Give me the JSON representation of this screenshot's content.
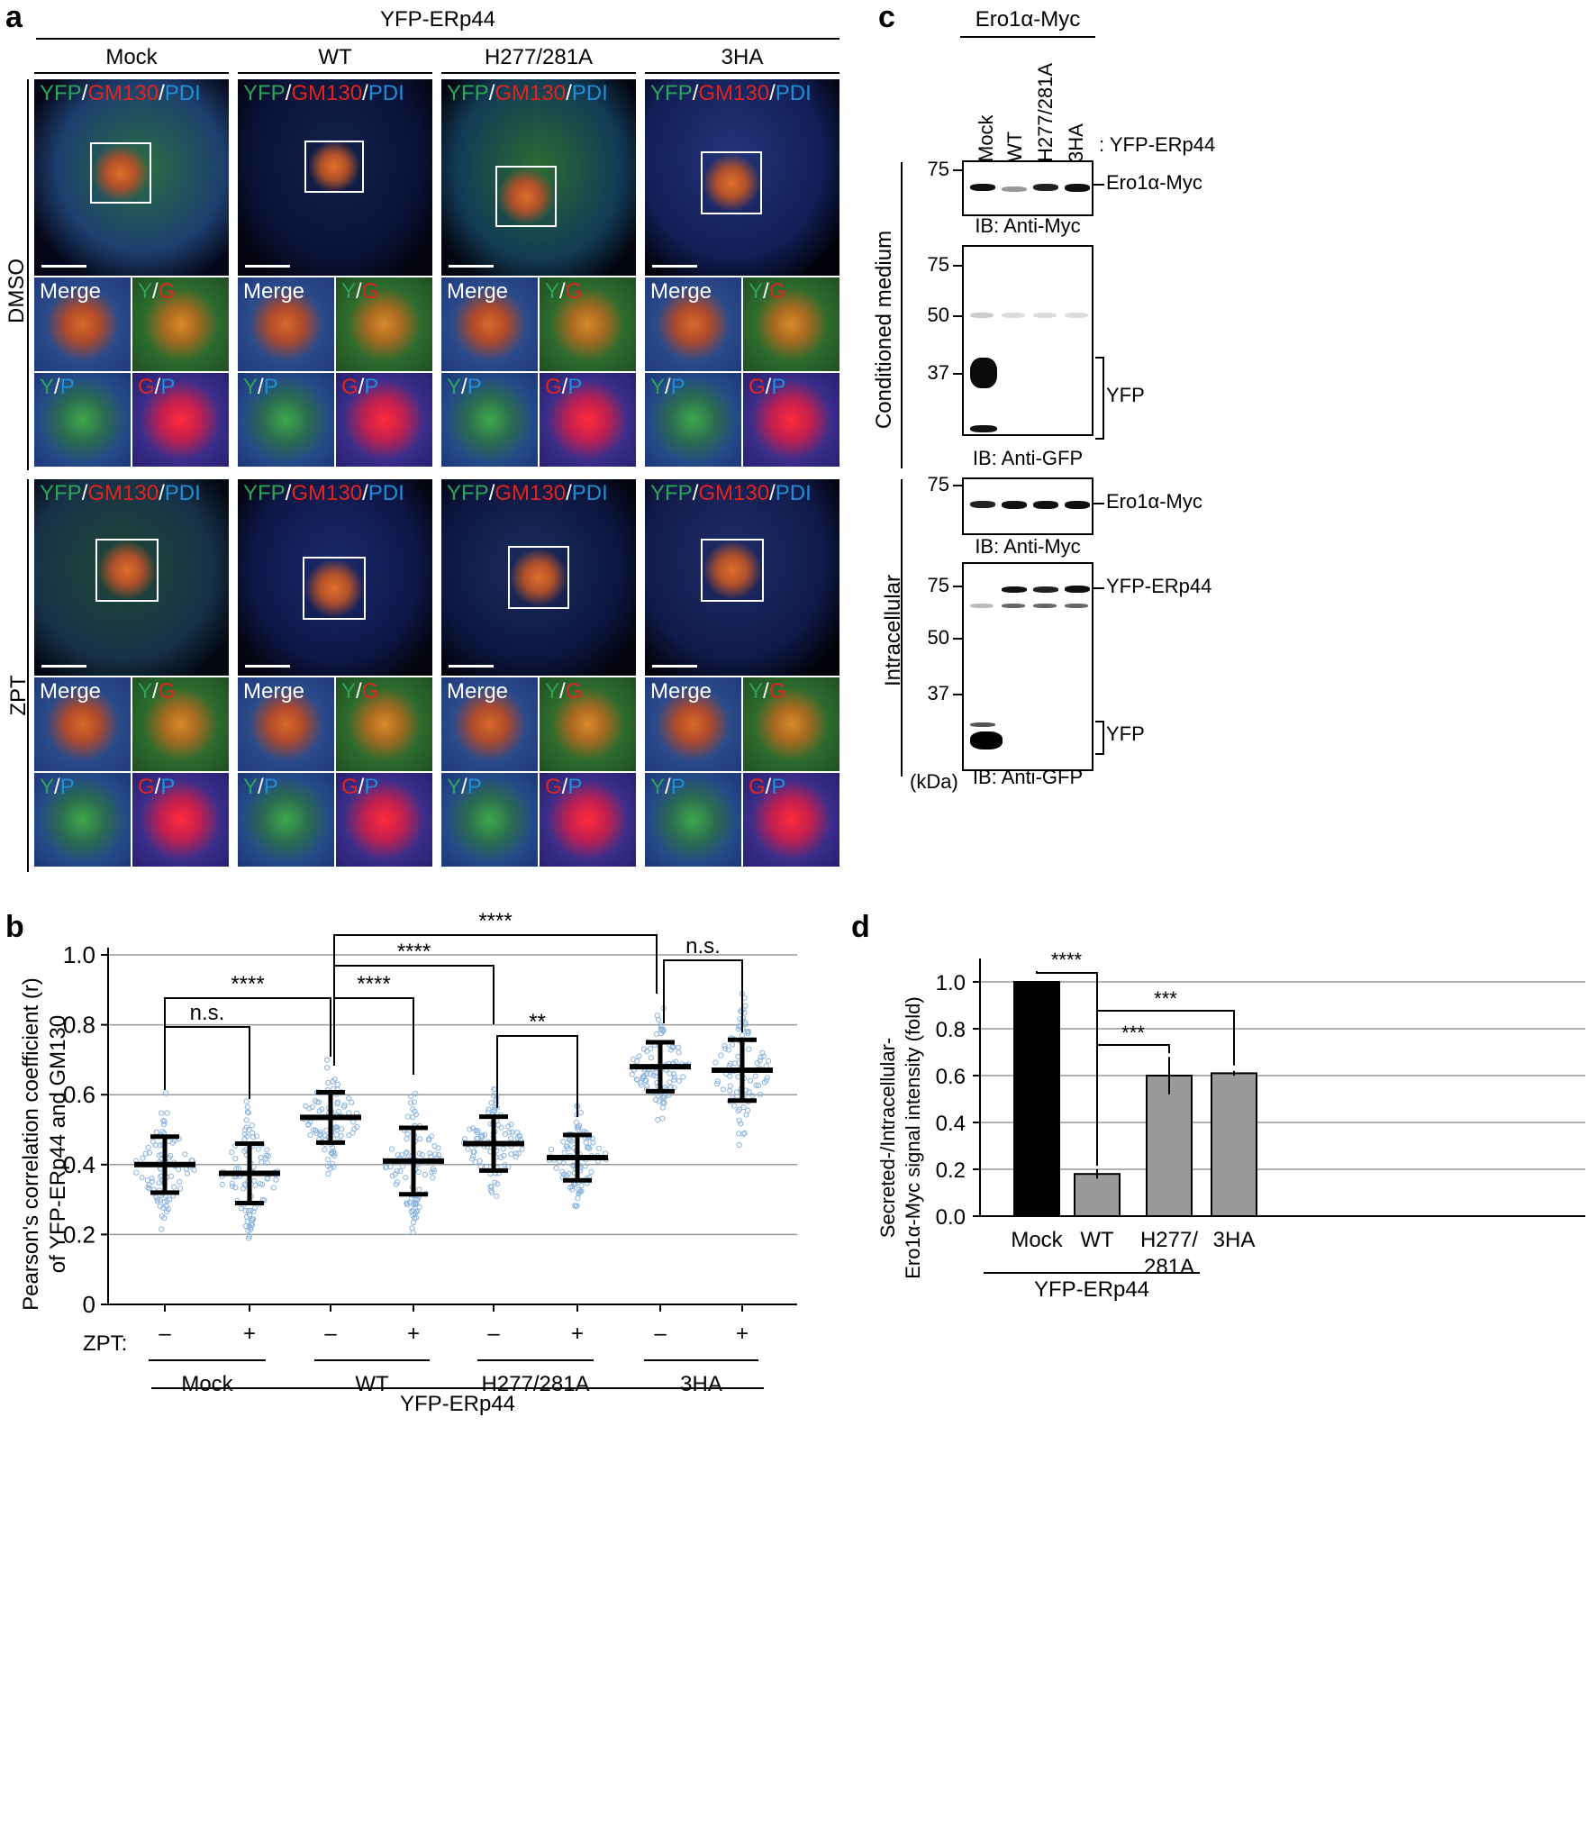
{
  "figure_type": "Multi-panel biology figure",
  "panel_a": {
    "letter": "a",
    "top_label": "YFP-ERp44",
    "columns": [
      "Mock",
      "WT",
      "H277/281A",
      "3HA"
    ],
    "rows": [
      "DMSO",
      "ZPT"
    ],
    "overlay_label": {
      "yfp": "YFP",
      "sep1": "/",
      "gm130": "GM130",
      "sep2": "/",
      "pdi": "PDI"
    },
    "inset_labels": {
      "merge": "Merge",
      "yg": {
        "a": "Y",
        "sep": "/",
        "b": "G"
      },
      "yp": {
        "a": "Y",
        "sep": "/",
        "b": "P"
      },
      "gp": {
        "a": "G",
        "sep": "/",
        "b": "P"
      }
    },
    "colors": {
      "yfp": "#2ea35a",
      "gm130": "#e2241e",
      "pdi": "#1f8fd6"
    }
  },
  "panel_b": {
    "letter": "b",
    "ylabel_line1": "Pearson's correlation coefficient (r)",
    "ylabel_line2": "of YFP-ERp44 and GM130",
    "zpt_label": "ZPT:",
    "bottom_label": "YFP-ERp44",
    "sig_labels": [
      "n.s.",
      "****",
      "****",
      "****",
      "****",
      "**",
      "n.s."
    ]
  },
  "panel_c": {
    "letter": "c",
    "top_label": "Ero1α-Myc",
    "lanes": [
      "Mock",
      "WT",
      "H277/281A",
      "3HA"
    ],
    "lane_suffix": ": YFP-ERp44",
    "section1": "Conditioned medium",
    "section2": "Intracellular",
    "kda": "(kDa)",
    "blots": [
      {
        "ib": "IB: Anti-Myc",
        "markers": [
          "75"
        ],
        "band_labels": [
          "Ero1α-Myc"
        ]
      },
      {
        "ib": "IB: Anti-GFP",
        "markers": [
          "75",
          "50",
          "37"
        ],
        "band_labels": [
          "YFP"
        ]
      },
      {
        "ib": "IB: Anti-Myc",
        "markers": [
          "75"
        ],
        "band_labels": [
          "Ero1α-Myc"
        ]
      },
      {
        "ib": "IB: Anti-GFP",
        "markers": [
          "75",
          "50",
          "37"
        ],
        "band_labels": [
          "YFP-ERp44",
          "YFP"
        ]
      }
    ]
  },
  "panel_d": {
    "letter": "d",
    "ylabel_line1": "Secreted-/Intracellular-",
    "ylabel_line2": "Ero1α-Myc signal intensity (fold)",
    "bottom_label": "YFP-ERp44",
    "sig_labels": [
      "****",
      "***",
      "***"
    ],
    "cat_label_h277_line1": "H277/",
    "cat_label_h277_line2": "281A"
  },
  "chart_data": [
    {
      "type": "scatter",
      "title": "",
      "ylabel": "Pearson's correlation coefficient (r) of YFP-ERp44 and GM130",
      "ylim": [
        0,
        1.0
      ],
      "yticks": [
        "0",
        "0.2",
        "0.4",
        "0.6",
        "0.8",
        "1.0"
      ],
      "grid": true,
      "x_categories": [
        "Mock –",
        "Mock +",
        "WT –",
        "WT +",
        "H277/281A –",
        "H277/281A +",
        "3HA –",
        "3HA +"
      ],
      "zpt": [
        "–",
        "+",
        "–",
        "+",
        "–",
        "+",
        "–",
        "+"
      ],
      "groups": [
        "Mock",
        "WT",
        "H277/281A",
        "3HA"
      ],
      "series": [
        {
          "name": "mean",
          "values": [
            0.4,
            0.375,
            0.535,
            0.41,
            0.46,
            0.42,
            0.68,
            0.67
          ]
        },
        {
          "name": "sd",
          "values": [
            0.08,
            0.085,
            0.072,
            0.095,
            0.077,
            0.065,
            0.07,
            0.087
          ]
        }
      ]
    },
    {
      "type": "bar",
      "categories": [
        "Mock",
        "WT",
        "H277/281A",
        "3HA"
      ],
      "values": [
        1.0,
        0.18,
        0.6,
        0.61
      ],
      "errors": [
        0,
        0.02,
        0.08,
        0.01
      ],
      "colors": [
        "#000000",
        "#9a9a9a",
        "#9a9a9a",
        "#9a9a9a"
      ],
      "ylabel": "Secreted-/Intracellular-Ero1α-Myc signal intensity (fold)",
      "ylim": [
        0,
        1.1
      ],
      "yticks": [
        "0.0",
        "0.2",
        "0.4",
        "0.6",
        "0.8",
        "1.0"
      ],
      "xlabel": "YFP-ERp44"
    }
  ]
}
